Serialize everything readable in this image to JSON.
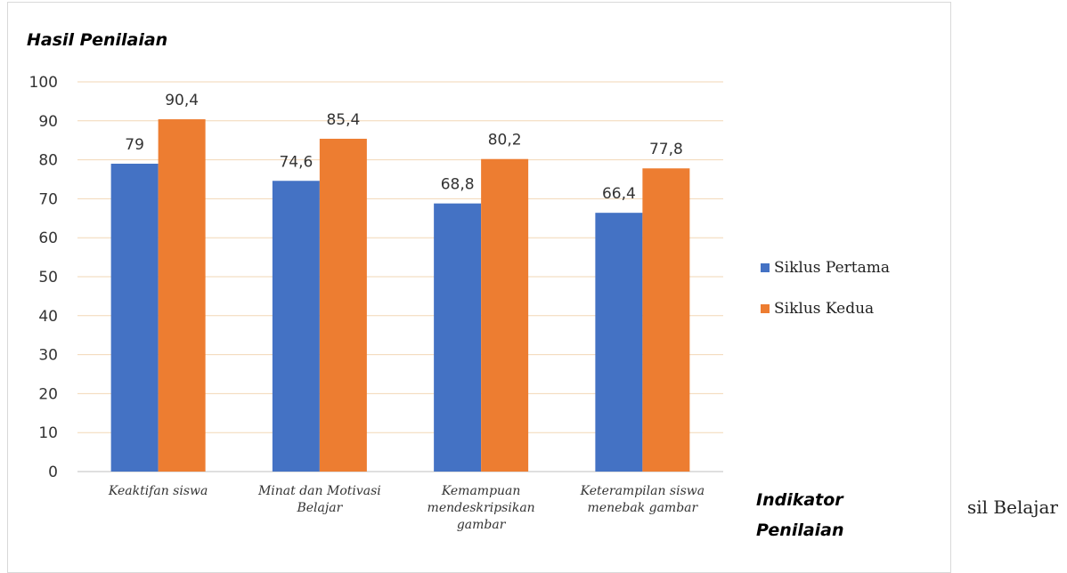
{
  "chart_data": {
    "type": "bar",
    "ylabel": "Hasil Penilaian",
    "xlabel": "Indikator Penilaian",
    "ylim": [
      0,
      100
    ],
    "yticks": [
      "0",
      "10",
      "20",
      "30",
      "40",
      "50",
      "60",
      "70",
      "80",
      "90",
      "100"
    ],
    "categories": [
      [
        "Keaktifan siswa"
      ],
      [
        "Minat dan Motivasi",
        "Belajar"
      ],
      [
        "Kemampuan",
        "mendeskripsikan",
        "gambar"
      ],
      [
        "Keterampilan siswa",
        "menebak gambar"
      ]
    ],
    "series": [
      {
        "name": "Siklus Pertama",
        "color": "#4472c4",
        "values": [
          79,
          74.6,
          68.8,
          66.4
        ],
        "labels": [
          "79",
          "74,6",
          "68,8",
          "66,4"
        ]
      },
      {
        "name": "Siklus Kedua",
        "color": "#ed7d31",
        "values": [
          90.4,
          85.4,
          80.2,
          77.8
        ],
        "labels": [
          "90,4",
          "85,4",
          "80,2",
          "77,8"
        ]
      }
    ],
    "grid": true,
    "gridline_color": "#f2d7b6",
    "legend_position": "right"
  },
  "side_text": "sil Belajar"
}
